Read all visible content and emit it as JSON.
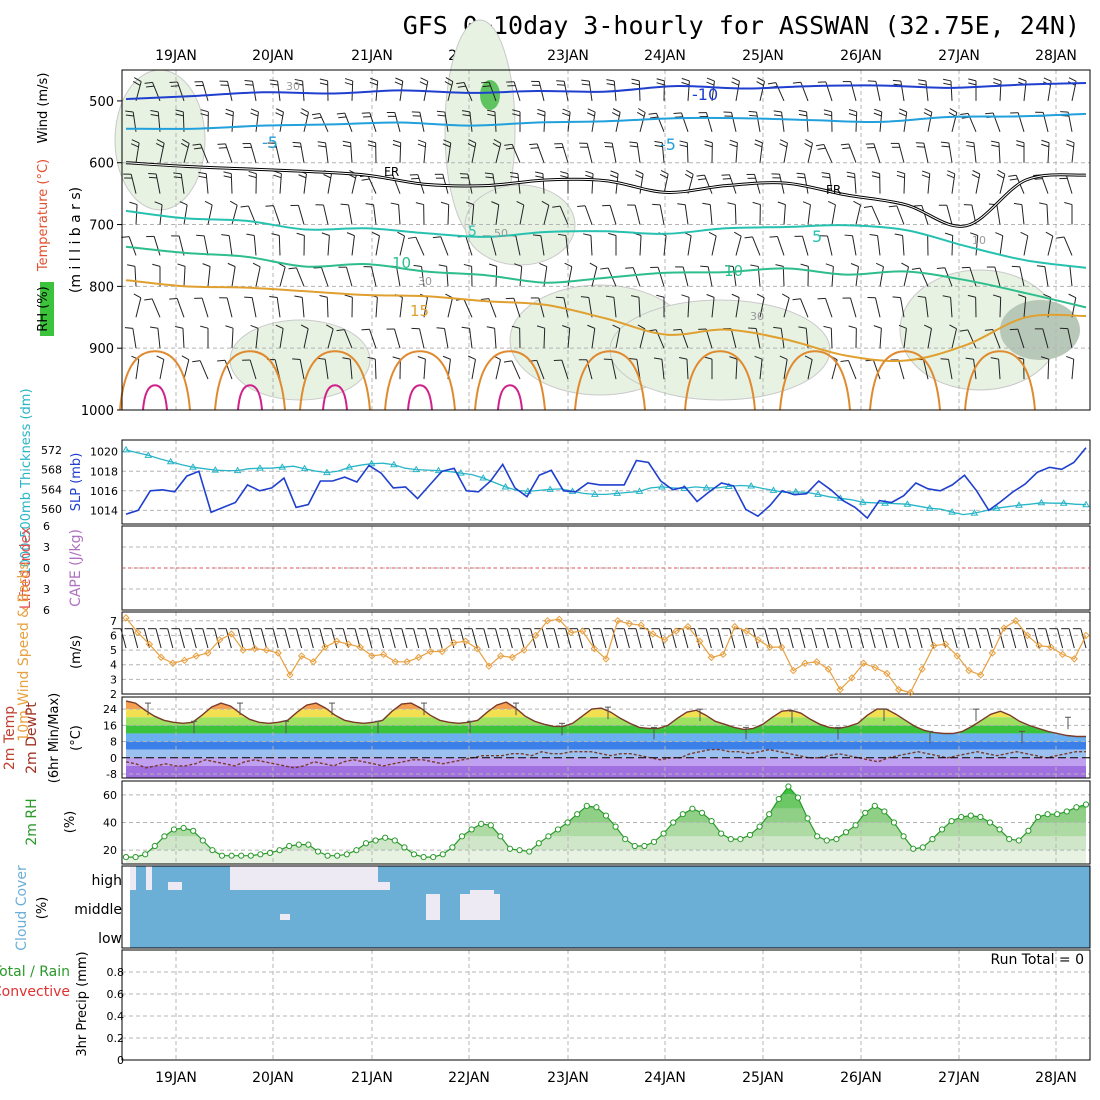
{
  "title": "GFS 0~10day 3-hourly for ASSWAN (32.75E, 24N)",
  "days": [
    "19JAN",
    "20JAN",
    "21JAN",
    "22JAN",
    "23JAN",
    "24JAN",
    "25JAN",
    "26JAN",
    "27JAN",
    "28JAN"
  ],
  "colors": {
    "frame": "#000000",
    "grid": "#b4b4b4",
    "slp": "#1f3fcf",
    "thickness": "#27b5c7",
    "lifted_zero": "#e05050",
    "wind_speed": "#e8a040",
    "rh_line": "#2a9a2a",
    "cloud": "#6baed6",
    "cloud_gap": "#eeeaf4",
    "rh_fill_light": "#e7f2e3",
    "freezing": "#000000"
  },
  "chart_data": [
    {
      "panel": "upper-air",
      "type": "contour",
      "ylabel_parts": [
        "RH (%)",
        "Temperature (°C)",
        "Wind (m/s)"
      ],
      "yunit": "(m i l l i b a r s)",
      "yticks": [
        500,
        600,
        700,
        800,
        900,
        1000
      ],
      "ylim": [
        450,
        1000
      ],
      "labels": {
        "fr": "FR",
        "temp_m10": "-10",
        "temp_m5": "-5",
        "temp_p5": "5",
        "temp_p10": "10",
        "temp_p15": "15",
        "rh30": "30",
        "rh50": "50",
        "rh10": "10"
      },
      "isotherms": [
        {
          "name": "-10",
          "color": "#1f3fcf",
          "p": [
            497,
            492,
            486,
            488,
            483,
            487,
            484,
            485,
            476,
            480,
            476,
            475,
            479,
            474,
            471
          ]
        },
        {
          "name": "-5",
          "color": "#21a0dc",
          "p": [
            545,
            545,
            540,
            538,
            535,
            540,
            535,
            533,
            528,
            528,
            531,
            534,
            526,
            525,
            521
          ]
        },
        {
          "name": "FR",
          "color": "#000000",
          "p": [
            600,
            606,
            610,
            614,
            620,
            635,
            637,
            628,
            629,
            648,
            637,
            633,
            652,
            668,
            702,
            628,
            620
          ]
        },
        {
          "name": "5",
          "color": "#27c1b0",
          "p": [
            678,
            690,
            694,
            708,
            706,
            714,
            720,
            712,
            711,
            715,
            706,
            704,
            701,
            709,
            735,
            758,
            770
          ]
        },
        {
          "name": "10",
          "color": "#2ebd8c",
          "p": [
            736,
            746,
            752,
            768,
            764,
            776,
            782,
            794,
            786,
            778,
            777,
            771,
            781,
            776,
            790,
            811,
            834
          ]
        },
        {
          "name": "15",
          "color": "#e0a030",
          "p": [
            790,
            800,
            802,
            808,
            814,
            816,
            824,
            830,
            852,
            878,
            870,
            886,
            912,
            920,
            895,
            850,
            848
          ]
        }
      ]
    },
    {
      "panel": "slp-thickness",
      "type": "line",
      "ylabel_left": "1000-500mb Thickness (dm)",
      "ylabel_right": "SLP (mb)",
      "left_ticks": [
        560,
        564,
        568,
        572
      ],
      "right_ticks": [
        1014,
        1016,
        1018,
        1020
      ],
      "series": [
        {
          "name": "SLP (mb)",
          "axis": "right",
          "values": [
            1013.6,
            1014.0,
            1016.0,
            1016.1,
            1015.9,
            1017.5,
            1018.0,
            1013.8,
            1014.3,
            1014.8,
            1016.6,
            1016.0,
            1016.3,
            1017.3,
            1014.3,
            1014.6,
            1017.0,
            1017.0,
            1017.4,
            1016.9,
            1018.6,
            1017.8,
            1016.3,
            1016.4,
            1015.2,
            1016.6,
            1018.0,
            1018.3,
            1016.0,
            1015.9,
            1017.0,
            1018.7,
            1016.3,
            1015.4,
            1017.6,
            1018.1,
            1016.0,
            1015.9,
            1016.8,
            1016.6,
            1016.6,
            1016.6,
            1019.1,
            1018.9,
            1017.0,
            1016.1,
            1016.4,
            1014.9,
            1015.9,
            1016.8,
            1016.5,
            1014.1,
            1013.4,
            1014.5,
            1016.0,
            1015.6,
            1015.7,
            1017.0,
            1016.1,
            1015.0,
            1014.3,
            1013.2,
            1015.0,
            1014.8,
            1015.5,
            1016.8,
            1016.2,
            1016.0,
            1016.6,
            1017.6,
            1016.0,
            1014.0,
            1014.9,
            1015.9,
            1016.7,
            1017.9,
            1018.4,
            1018.2,
            1018.9,
            1020.4
          ]
        },
        {
          "name": "1000-500mb Thickness (dm)",
          "axis": "left",
          "values": [
            572.0,
            571.4,
            570.9,
            570.2,
            569.6,
            569.0,
            568.5,
            568.2,
            567.9,
            567.8,
            567.8,
            568.2,
            568.3,
            568.3,
            568.5,
            568.7,
            568.2,
            567.7,
            567.4,
            567.7,
            568.5,
            568.9,
            569.2,
            569.3,
            569.0,
            568.3,
            568.0,
            567.9,
            567.8,
            567.6,
            567.3,
            567.0,
            566.3,
            565.4,
            564.5,
            563.8,
            563.6,
            563.8,
            564.0,
            564.1,
            563.6,
            563.2,
            563.0,
            563.0,
            563.2,
            563.4,
            563.6,
            564.3,
            564.5,
            564.3,
            564.2,
            564.5,
            564.3,
            564.3,
            564.6,
            564.8,
            564.7,
            564.2,
            563.8,
            563.4,
            563.5,
            563.4,
            563.0,
            562.5,
            562.2,
            561.9,
            561.4,
            561.3,
            561.2,
            561.1,
            561.0,
            560.6,
            560.2,
            560.0,
            559.4,
            558.9,
            559.2,
            559.7,
            560.2,
            560.5,
            560.8,
            561.0,
            561.3,
            561.2,
            561.2,
            561.0,
            560.9
          ]
        }
      ]
    },
    {
      "panel": "stability",
      "type": "line",
      "ylabel_left": "Lifted Index",
      "ylabel_right": "CAPE (J/kg)",
      "yticks": [
        "6",
        "3",
        "0",
        "3",
        "6"
      ],
      "lifted_index_zero": 0
    },
    {
      "panel": "wind10m",
      "type": "line",
      "ylabel": "10m Wind Speed & Barbs",
      "yunit": "(m/s)",
      "yticks": [
        2,
        3,
        4,
        5,
        6,
        7
      ],
      "ylim": [
        2,
        7.6
      ],
      "values": [
        7.2,
        6.2,
        5.4,
        4.5,
        4.1,
        4.3,
        4.6,
        4.8,
        5.7,
        6.1,
        5.0,
        5.1,
        5.0,
        4.8,
        3.3,
        4.6,
        4.2,
        5.2,
        5.6,
        5.4,
        5.2,
        4.6,
        4.7,
        4.2,
        4.2,
        4.5,
        4.9,
        4.9,
        5.5,
        5.6,
        5.1,
        3.9,
        4.6,
        4.5,
        5.0,
        6.0,
        7.0,
        7.1,
        6.2,
        6.3,
        5.1,
        4.4,
        7.0,
        6.8,
        6.7,
        6.1,
        5.7,
        6.3,
        6.6,
        5.6,
        4.5,
        4.7,
        6.6,
        6.3,
        5.7,
        5.2,
        5.2,
        3.6,
        4.1,
        4.2,
        3.7,
        2.3,
        3.1,
        4.1,
        3.8,
        3.4,
        2.3,
        2.1,
        3.7,
        5.3,
        5.4,
        4.6,
        3.6,
        3.3,
        4.8,
        6.5,
        7.0,
        6.0,
        5.3,
        5.2,
        4.7,
        4.4,
        6.0
      ]
    },
    {
      "panel": "temp2m",
      "type": "area",
      "ylabel_parts": [
        "2m Temp",
        "2m DewPt",
        "(6hr Min/Max)"
      ],
      "yunit": "(°C)",
      "yticks": [
        -8,
        0,
        8,
        16,
        24
      ],
      "ylim": [
        -10,
        30
      ],
      "temperature": [
        28.0,
        27.0,
        23.5,
        20.5,
        18.5,
        17.5,
        17.0,
        17.5,
        21.0,
        25.0,
        27.0,
        25.5,
        22.0,
        19.0,
        17.5,
        17.0,
        17.5,
        18.5,
        22.5,
        26.0,
        27.0,
        24.5,
        21.0,
        18.5,
        17.5,
        17.0,
        17.5,
        18.5,
        23.0,
        26.5,
        27.0,
        24.5,
        21.0,
        18.5,
        17.5,
        17.0,
        17.5,
        18.5,
        22.5,
        26.0,
        27.5,
        24.5,
        20.5,
        18.0,
        16.5,
        15.5,
        15.5,
        17.0,
        20.5,
        24.0,
        24.5,
        22.5,
        19.5,
        17.0,
        15.0,
        14.5,
        14.5,
        16.0,
        19.5,
        22.5,
        23.5,
        21.0,
        18.0,
        16.5,
        15.0,
        14.0,
        14.5,
        16.5,
        20.0,
        23.0,
        23.5,
        22.0,
        19.0,
        16.5,
        15.0,
        14.5,
        15.5,
        17.0,
        21.0,
        24.0,
        24.0,
        21.5,
        18.5,
        15.5,
        13.5,
        12.5,
        12.0,
        12.0,
        13.0,
        15.5,
        18.5,
        21.5,
        23.0,
        21.0,
        18.0,
        16.0,
        14.5,
        13.0,
        12.0,
        11.0,
        10.5,
        10.5
      ],
      "dewpoint": [
        -2,
        -3,
        -5,
        -4,
        -3,
        -4,
        -4,
        -3,
        -1,
        -2,
        -3,
        -4,
        -2,
        -1,
        -2,
        -3,
        -4,
        -5,
        -4,
        -2,
        -3,
        -4,
        -2,
        -1,
        -2,
        -3,
        -4,
        -3,
        -2,
        -1,
        -1,
        -2,
        -3,
        -2,
        -1,
        0,
        1,
        1,
        1,
        2,
        2,
        1,
        3,
        2,
        2,
        3,
        3,
        3,
        2,
        1,
        2,
        2,
        1,
        0,
        -1,
        0,
        0,
        2,
        3,
        4,
        4,
        3,
        3,
        2,
        3,
        4,
        3,
        2,
        1,
        0,
        0,
        1,
        2,
        1,
        0,
        -1,
        -2,
        0,
        1,
        2,
        3,
        2,
        1,
        0,
        1,
        2,
        3,
        2,
        1,
        2,
        3,
        2,
        1,
        0,
        1,
        2,
        3,
        3
      ],
      "minmax_points": [
        27,
        18,
        27,
        18,
        27,
        18,
        27,
        18,
        27,
        17,
        25,
        15,
        24,
        15,
        23,
        15,
        24,
        13,
        24,
        13,
        20,
        11
      ]
    },
    {
      "panel": "rh2m",
      "type": "area",
      "ylabel": "2m RH",
      "yunit": "(%)",
      "yticks": [
        20,
        40,
        60
      ],
      "ylim": [
        10,
        70
      ],
      "values": [
        15,
        15,
        17,
        23,
        30,
        35,
        36,
        34,
        27,
        20,
        16,
        16,
        16,
        16,
        17,
        18,
        20,
        23,
        24,
        24,
        19,
        16,
        16,
        17,
        20,
        25,
        27,
        29,
        27,
        22,
        17,
        15,
        15,
        17,
        22,
        30,
        35,
        39,
        38,
        30,
        21,
        20,
        19,
        25,
        30,
        35,
        40,
        46,
        52,
        51,
        45,
        37,
        28,
        23,
        23,
        26,
        32,
        40,
        46,
        50,
        47,
        41,
        32,
        28,
        28,
        31,
        37,
        46,
        57,
        66,
        58,
        43,
        30,
        27,
        28,
        33,
        38,
        47,
        52,
        48,
        40,
        30,
        21,
        22,
        28,
        35,
        41,
        44,
        45,
        44,
        40,
        35,
        28,
        27,
        34,
        44,
        46,
        46,
        48,
        51,
        53
      ]
    },
    {
      "panel": "cloud",
      "type": "area",
      "ylabel": "Cloud Cover",
      "yunit": "(%)",
      "levels": [
        "high",
        "middle",
        "low"
      ]
    },
    {
      "panel": "precip",
      "type": "bar",
      "ylabel_parts": [
        "Total / Rain",
        "Convective"
      ],
      "ylabel": "3hr Precip (mm)",
      "yticks": [
        "0",
        "0.2",
        "0.4",
        "0.6",
        "0.8"
      ],
      "ylim": [
        0,
        1
      ],
      "run_total": "Run Total = 0",
      "values": []
    }
  ]
}
